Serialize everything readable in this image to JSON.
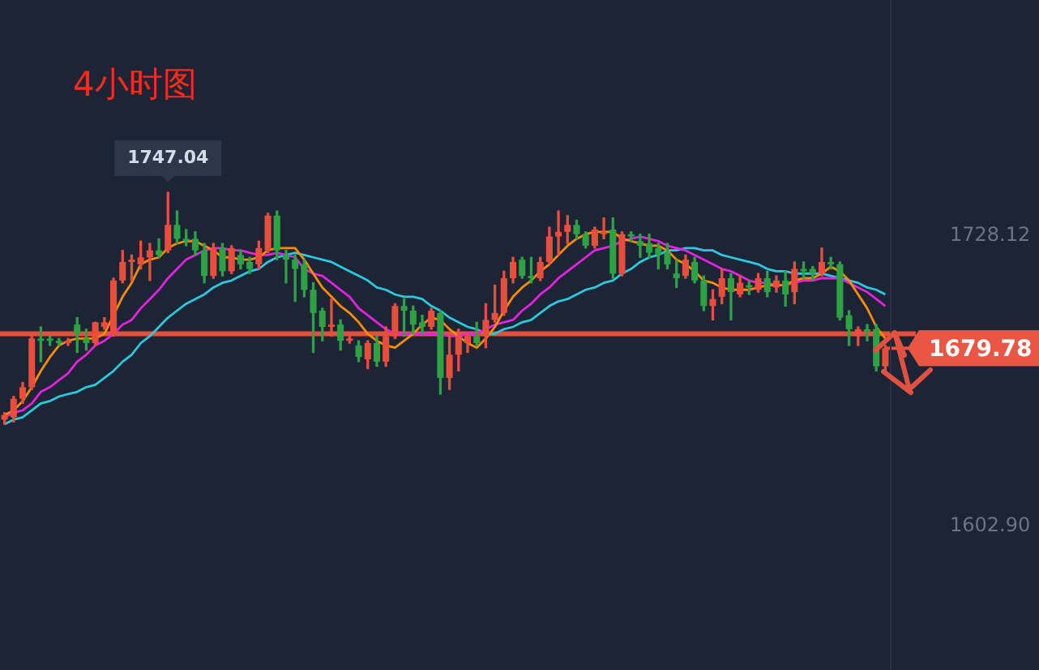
{
  "chart_data": {
    "type": "candlestick",
    "title": "4小时图",
    "categories": [
      null,
      null,
      null,
      null,
      null,
      null,
      null,
      null,
      null,
      null,
      null,
      null,
      null,
      null,
      null,
      null,
      null,
      null,
      null,
      null,
      null,
      null,
      null,
      null,
      null,
      null,
      null,
      null,
      null,
      null,
      null,
      null,
      null,
      null,
      null,
      null,
      null,
      null,
      null,
      null,
      null,
      null,
      null,
      null,
      null,
      null,
      null,
      null,
      null,
      null,
      null,
      null,
      null,
      null,
      null,
      null,
      null,
      null,
      null,
      null,
      null,
      null,
      null,
      null,
      null,
      null,
      null,
      null,
      null,
      null,
      null,
      null,
      null,
      null,
      null,
      null,
      null,
      null,
      null,
      null,
      null,
      null,
      null,
      null,
      null,
      null,
      null,
      null,
      null,
      null,
      null,
      null,
      null,
      null,
      null,
      null,
      null,
      null
    ],
    "ohlc": [
      [
        1649,
        1652,
        1647,
        1651
      ],
      [
        1650,
        1659,
        1648,
        1658
      ],
      [
        1658,
        1665,
        1656,
        1663
      ],
      [
        1663,
        1686,
        1662,
        1684
      ],
      [
        1684,
        1689,
        1674,
        1683
      ],
      [
        1684,
        1685,
        1681,
        1683
      ],
      [
        1683,
        1684,
        1681,
        1682
      ],
      [
        1682,
        1684,
        1681,
        1683
      ],
      [
        1690,
        1693,
        1678,
        1686
      ],
      [
        1684,
        1688,
        1679,
        1682
      ],
      [
        1682,
        1691,
        1681,
        1691
      ],
      [
        1689,
        1693,
        1688,
        1691
      ],
      [
        1686,
        1710,
        1685,
        1709
      ],
      [
        1709,
        1722,
        1708,
        1717
      ],
      [
        1717,
        1720,
        1709,
        1718
      ],
      [
        1716,
        1726,
        1714,
        1719
      ],
      [
        1719,
        1725,
        1709,
        1722
      ],
      [
        1722,
        1727,
        1719,
        1720
      ],
      [
        1722,
        1747.04,
        1721,
        1733
      ],
      [
        1733,
        1739,
        1725,
        1727
      ],
      [
        1727,
        1731,
        1724,
        1726
      ],
      [
        1727,
        1730,
        1720,
        1722
      ],
      [
        1722,
        1725,
        1708,
        1711
      ],
      [
        1711,
        1725,
        1710,
        1723
      ],
      [
        1723,
        1725,
        1711,
        1713
      ],
      [
        1713,
        1724,
        1712,
        1723
      ],
      [
        1720,
        1722,
        1714,
        1716
      ],
      [
        1717,
        1719,
        1712,
        1714
      ],
      [
        1716,
        1726,
        1714,
        1723
      ],
      [
        1722,
        1738,
        1721,
        1737
      ],
      [
        1737,
        1739,
        1718,
        1722
      ],
      [
        1720,
        1722,
        1708,
        1718
      ],
      [
        1718,
        1720,
        1700,
        1714
      ],
      [
        1716,
        1718,
        1702,
        1705
      ],
      [
        1705,
        1708,
        1678,
        1695
      ],
      [
        1696,
        1697,
        1683,
        1689
      ],
      [
        1689,
        1701,
        1685,
        1690
      ],
      [
        1690,
        1692,
        1679,
        1683
      ],
      [
        1683,
        1685,
        1682,
        1684
      ],
      [
        1681,
        1683,
        1674,
        1676
      ],
      [
        1675,
        1683,
        1671,
        1682
      ],
      [
        1682,
        1685,
        1672,
        1674
      ],
      [
        1674,
        1689,
        1672,
        1685
      ],
      [
        1685,
        1699,
        1684,
        1698
      ],
      [
        1698,
        1701,
        1685,
        1696
      ],
      [
        1696,
        1698,
        1686,
        1690
      ],
      [
        1691,
        1694,
        1686,
        1689
      ],
      [
        1689,
        1697,
        1688,
        1696
      ],
      [
        1695,
        1696,
        1660,
        1667
      ],
      [
        1667,
        1685,
        1662,
        1677
      ],
      [
        1677,
        1688,
        1670,
        1685
      ],
      [
        1682,
        1686,
        1678,
        1685
      ],
      [
        1685,
        1691,
        1681,
        1682
      ],
      [
        1685,
        1699,
        1680,
        1692
      ],
      [
        1692,
        1707,
        1691,
        1695
      ],
      [
        1695,
        1713,
        1694,
        1710
      ],
      [
        1710,
        1719,
        1708,
        1717
      ],
      [
        1718,
        1719,
        1710,
        1711
      ],
      [
        1711,
        1719,
        1708,
        1710
      ],
      [
        1710,
        1719,
        1709,
        1717
      ],
      [
        1717,
        1732,
        1716,
        1728
      ],
      [
        1728,
        1739,
        1720,
        1730
      ],
      [
        1730,
        1737,
        1725,
        1733
      ],
      [
        1733,
        1735,
        1727,
        1729
      ],
      [
        1729,
        1730,
        1723,
        1724
      ],
      [
        1724,
        1732,
        1723,
        1731
      ],
      [
        1729,
        1736,
        1727,
        1730
      ],
      [
        1731,
        1736,
        1710,
        1712
      ],
      [
        1712,
        1730,
        1711,
        1729
      ],
      [
        1729,
        1730,
        1726,
        1728
      ],
      [
        1726,
        1729,
        1719,
        1724
      ],
      [
        1725,
        1729,
        1719,
        1721
      ],
      [
        1723,
        1725,
        1714,
        1720
      ],
      [
        1721,
        1725,
        1714,
        1716
      ],
      [
        1712,
        1718,
        1706,
        1710
      ],
      [
        1711,
        1720,
        1710,
        1718
      ],
      [
        1717,
        1719,
        1708,
        1709
      ],
      [
        1709,
        1711,
        1696,
        1698
      ],
      [
        1698,
        1705,
        1692,
        1701
      ],
      [
        1702,
        1714,
        1699,
        1710
      ],
      [
        1710,
        1712,
        1692,
        1704
      ],
      [
        1703,
        1711,
        1702,
        1708
      ],
      [
        1707,
        1709,
        1703,
        1706
      ],
      [
        1705,
        1712,
        1704,
        1710
      ],
      [
        1710,
        1713,
        1702,
        1704
      ],
      [
        1706,
        1711,
        1704,
        1709
      ],
      [
        1709,
        1713,
        1698,
        1703
      ],
      [
        1704,
        1717,
        1699,
        1714
      ],
      [
        1714,
        1717,
        1710,
        1713
      ],
      [
        1714,
        1715,
        1709,
        1712
      ],
      [
        1712,
        1723,
        1711,
        1717
      ],
      [
        1717,
        1719,
        1714,
        1716
      ],
      [
        1716,
        1717,
        1692,
        1693
      ],
      [
        1694,
        1696,
        1681,
        1688
      ],
      [
        1685,
        1689,
        1681,
        1688
      ],
      [
        1688,
        1690,
        1683,
        1687
      ],
      [
        1688,
        1690,
        1670,
        1672
      ],
      [
        1672,
        1681,
        1670,
        1679.78
      ]
    ],
    "colors": [
      "#eb4d3d",
      "#eb4d3d",
      "#eb4d3d",
      "#eb4d3d",
      "#2ca244",
      "#2ca244",
      "#2ca244",
      "#eb4d3d",
      "#2ca244",
      "#2ca244",
      "#eb4d3d",
      "#eb4d3d",
      "#eb4d3d",
      "#eb4d3d",
      "#eb4d3d",
      "#eb4d3d",
      "#eb4d3d",
      "#2ca244",
      "#eb4d3d",
      "#2ca244",
      "#2ca244",
      "#2ca244",
      "#2ca244",
      "#eb4d3d",
      "#2ca244",
      "#eb4d3d",
      "#2ca244",
      "#2ca244",
      "#eb4d3d",
      "#eb4d3d",
      "#2ca244",
      "#2ca244",
      "#2ca244",
      "#2ca244",
      "#2ca244",
      "#2ca244",
      "#eb4d3d",
      "#2ca244",
      "#eb4d3d",
      "#2ca244",
      "#eb4d3d",
      "#2ca244",
      "#eb4d3d",
      "#eb4d3d",
      "#2ca244",
      "#2ca244",
      "#2ca244",
      "#eb4d3d",
      "#2ca244",
      "#eb4d3d",
      "#eb4d3d",
      "#eb4d3d",
      "#2ca244",
      "#eb4d3d",
      "#eb4d3d",
      "#eb4d3d",
      "#eb4d3d",
      "#2ca244",
      "#2ca244",
      "#eb4d3d",
      "#eb4d3d",
      "#eb4d3d",
      "#eb4d3d",
      "#2ca244",
      "#2ca244",
      "#eb4d3d",
      "#eb4d3d",
      "#2ca244",
      "#eb4d3d",
      "#2ca244",
      "#2ca244",
      "#2ca244",
      "#2ca244",
      "#2ca244",
      "#2ca244",
      "#eb4d3d",
      "#2ca244",
      "#2ca244",
      "#eb4d3d",
      "#eb4d3d",
      "#2ca244",
      "#eb4d3d",
      "#2ca244",
      "#eb4d3d",
      "#2ca244",
      "#eb4d3d",
      "#2ca244",
      "#eb4d3d",
      "#2ca244",
      "#2ca244",
      "#eb4d3d",
      "#2ca244",
      "#2ca244",
      "#2ca244",
      "#eb4d3d",
      "#2ca244",
      "#2ca244",
      "#eb4d3d"
    ],
    "series": [
      {
        "type": "line",
        "color": "#ff8c00",
        "values": [
          1651,
          1653,
          1657,
          1663,
          1670,
          1676,
          1681,
          1683,
          1684,
          1684,
          1684,
          1686,
          1694,
          1702,
          1708,
          1716,
          1718,
          1719,
          1723,
          1725,
          1726,
          1726,
          1724,
          1722,
          1719,
          1719,
          1718,
          1718,
          1719,
          1722,
          1723,
          1723,
          1723,
          1718,
          1712,
          1706,
          1702,
          1698,
          1695,
          1691,
          1686,
          1683,
          1681,
          1680,
          1683,
          1686,
          1690,
          1693,
          1692,
          1688,
          1685,
          1682,
          1680,
          1684,
          1689,
          1696,
          1702,
          1706,
          1709,
          1713,
          1716,
          1720,
          1724,
          1727,
          1729,
          1730,
          1730,
          1730,
          1727,
          1726,
          1725,
          1724,
          1724,
          1722,
          1718,
          1716,
          1713,
          1709,
          1708,
          1706,
          1705,
          1705,
          1705,
          1706,
          1707,
          1707,
          1707,
          1709,
          1710,
          1710,
          1712,
          1715,
          1713,
          1709,
          1703,
          1697,
          1689,
          1684
        ]
      },
      {
        "type": "line",
        "color": "#e622e0",
        "values": [
          1650,
          1652,
          1653,
          1656,
          1661,
          1663,
          1666,
          1669,
          1674,
          1677,
          1681,
          1683,
          1686,
          1690,
          1692,
          1697,
          1701,
          1705,
          1710,
          1714,
          1718,
          1720,
          1722,
          1723,
          1723,
          1722,
          1722,
          1721,
          1720,
          1720,
          1721,
          1720,
          1719,
          1714,
          1712,
          1711,
          1708,
          1705,
          1702,
          1697,
          1694,
          1691,
          1688,
          1686,
          1686,
          1686,
          1686,
          1686,
          1686,
          1685,
          1685,
          1686,
          1686,
          1688,
          1690,
          1691,
          1692,
          1696,
          1699,
          1703,
          1706,
          1710,
          1713,
          1716,
          1719,
          1722,
          1723,
          1724,
          1726,
          1727,
          1728,
          1727,
          1726,
          1724,
          1723,
          1722,
          1720,
          1718,
          1716,
          1714,
          1713,
          1711,
          1709,
          1708,
          1708,
          1707,
          1707,
          1708,
          1709,
          1709,
          1710,
          1710,
          1710,
          1708,
          1706,
          1704,
          1701,
          1698
        ]
      },
      {
        "type": "line",
        "color": "#2ac9de",
        "values": [
          1647,
          1649,
          1650,
          1653,
          1656,
          1657,
          1659,
          1660,
          1661,
          1663,
          1664,
          1667,
          1670,
          1674,
          1677,
          1682,
          1685,
          1689,
          1693,
          1696,
          1699,
          1701,
          1703,
          1706,
          1708,
          1709,
          1711,
          1713,
          1714,
          1717,
          1719,
          1720,
          1721,
          1720,
          1719,
          1718,
          1717,
          1715,
          1713,
          1711,
          1709,
          1706,
          1705,
          1703,
          1702,
          1702,
          1701,
          1698,
          1696,
          1693,
          1691,
          1689,
          1688,
          1686,
          1686,
          1688,
          1689,
          1691,
          1692,
          1695,
          1698,
          1700,
          1701,
          1703,
          1705,
          1706,
          1708,
          1709,
          1712,
          1714,
          1717,
          1719,
          1720,
          1722,
          1722,
          1723,
          1723,
          1722,
          1722,
          1720,
          1719,
          1718,
          1717,
          1716,
          1714,
          1713,
          1713,
          1712,
          1712,
          1712,
          1712,
          1711,
          1710,
          1709,
          1708,
          1706,
          1705,
          1703
        ]
      }
    ],
    "ylim": [
      1541,
      1830
    ],
    "yticks": [
      {
        "value": 1602.9,
        "label": "1602.90"
      },
      {
        "value": 1728.12,
        "label": "1728.12"
      }
    ],
    "tick_labels": "y",
    "legend": false,
    "marker": "none",
    "ref_lines": [
      {
        "axis": "y",
        "value": 1686,
        "color": "#e0523f"
      },
      {
        "axis": "y",
        "value": 1679.78,
        "label": "1679.78",
        "color": "#ea5544"
      }
    ],
    "annotations": [
      {
        "text": "1747.04",
        "y": 1747.04
      }
    ]
  }
}
